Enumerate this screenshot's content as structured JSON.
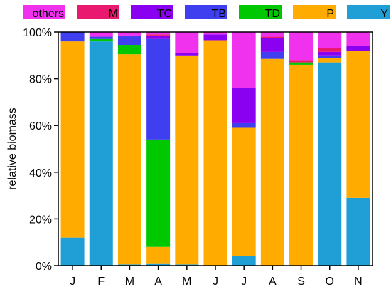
{
  "chart_data": {
    "type": "bar",
    "stacked": true,
    "title": "",
    "xlabel": "",
    "ylabel": "relative biomass",
    "ylim": [
      0,
      100
    ],
    "yticks": [
      "0%",
      "20%",
      "40%",
      "60%",
      "80%",
      "100%"
    ],
    "grid": false,
    "legend_position": "top",
    "categories": [
      "J",
      "F",
      "M",
      "A",
      "M",
      "J",
      "J",
      "A",
      "S",
      "O",
      "N"
    ],
    "series": [
      {
        "name": "Y",
        "color": "#1f9fd6",
        "values": [
          12,
          96,
          0.5,
          1,
          0.5,
          0,
          4,
          0,
          0,
          87,
          29
        ]
      },
      {
        "name": "P",
        "color": "#ffab00",
        "values": [
          84,
          0,
          90,
          7,
          89.5,
          96.5,
          55,
          88.5,
          86,
          2,
          63
        ]
      },
      {
        "name": "TD",
        "color": "#00c800",
        "values": [
          0,
          1,
          4,
          46,
          0,
          0,
          0,
          0,
          1,
          0,
          0
        ]
      },
      {
        "name": "TB",
        "color": "#3f3ff0",
        "values": [
          4,
          1,
          4,
          43,
          0,
          0,
          2,
          3,
          0,
          1,
          0
        ]
      },
      {
        "name": "TC",
        "color": "#8a00f0",
        "values": [
          0,
          0,
          0,
          1.5,
          1,
          2.5,
          15,
          6,
          0,
          1.5,
          2
        ]
      },
      {
        "name": "M",
        "color": "#e8196e",
        "values": [
          0,
          0,
          0,
          0.5,
          0,
          0,
          0,
          0.5,
          1,
          1.5,
          0
        ]
      },
      {
        "name": "others",
        "color": "#f032ee",
        "values": [
          0,
          2,
          1.5,
          1,
          9,
          1,
          24,
          2,
          12,
          7,
          6
        ]
      }
    ]
  }
}
